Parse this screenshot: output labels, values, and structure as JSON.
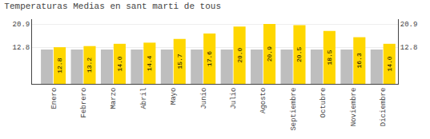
{
  "chart_data": {
    "type": "bar",
    "title": "Temperaturas Medias en sant marti de tous",
    "categories": [
      "Enero",
      "Febrero",
      "Marzo",
      "Abril",
      "Mayo",
      "Junio",
      "Julio",
      "Agosto",
      "Septiembre",
      "Octubre",
      "Noviembre",
      "Diciembre"
    ],
    "series": [
      {
        "color": "#BEBEBE",
        "values": [
          12.0,
          12.0,
          12.0,
          12.0,
          12.0,
          12.0,
          12.0,
          12.0,
          12.0,
          12.0,
          12.0,
          12.0
        ]
      },
      {
        "color": "#FFD700",
        "values": [
          12.8,
          13.2,
          14.0,
          14.4,
          15.7,
          17.6,
          20.0,
          20.9,
          20.5,
          18.5,
          16.3,
          14.0
        ],
        "value_labels": [
          "12.8",
          "13.2",
          "14.0",
          "14.4",
          "15.7",
          "17.6",
          "20.0",
          "20.9",
          "20.5",
          "18.5",
          "16.3",
          "14.0"
        ],
        "data_labels": true
      }
    ],
    "ylim": [
      0,
      22.6
    ],
    "yticks": [
      12.8,
      20.9
    ],
    "y2lim": [
      0,
      22.6
    ],
    "y2ticks": [
      12.8,
      20.9
    ],
    "grid": true
  }
}
